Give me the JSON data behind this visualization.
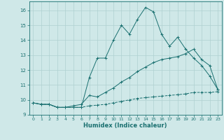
{
  "xlabel": "Humidex (Indice chaleur)",
  "bg_color": "#cfe8e8",
  "grid_color": "#afd0d0",
  "line_color": "#1a7070",
  "xlim": [
    -0.5,
    23.5
  ],
  "ylim": [
    9.0,
    16.6
  ],
  "xticks": [
    0,
    1,
    2,
    3,
    4,
    5,
    6,
    7,
    8,
    9,
    10,
    11,
    12,
    13,
    14,
    15,
    16,
    17,
    18,
    19,
    20,
    21,
    22,
    23
  ],
  "yticks": [
    9,
    10,
    11,
    12,
    13,
    14,
    15,
    16
  ],
  "line1_x": [
    0,
    1,
    2,
    3,
    4,
    5,
    6,
    7,
    8,
    9,
    10,
    11,
    12,
    13,
    14,
    15,
    16,
    17,
    18,
    19,
    20,
    21,
    22,
    23
  ],
  "line1_y": [
    9.8,
    9.7,
    9.7,
    9.5,
    9.5,
    9.5,
    9.5,
    11.5,
    12.8,
    12.8,
    14.0,
    15.0,
    14.4,
    15.4,
    16.2,
    15.9,
    14.4,
    13.6,
    14.2,
    13.4,
    12.8,
    12.3,
    11.6,
    10.7
  ],
  "line2_x": [
    0,
    1,
    2,
    3,
    4,
    5,
    6,
    7,
    8,
    9,
    10,
    11,
    12,
    13,
    14,
    15,
    16,
    17,
    18,
    19,
    20,
    21,
    22,
    23
  ],
  "line2_y": [
    9.8,
    9.7,
    9.7,
    9.5,
    9.5,
    9.6,
    9.7,
    10.3,
    10.2,
    10.5,
    10.8,
    11.2,
    11.5,
    11.9,
    12.2,
    12.5,
    12.7,
    12.8,
    12.9,
    13.1,
    13.4,
    12.7,
    12.3,
    10.7
  ],
  "line3_x": [
    0,
    1,
    2,
    3,
    4,
    5,
    6,
    7,
    8,
    9,
    10,
    11,
    12,
    13,
    14,
    15,
    16,
    17,
    18,
    19,
    20,
    21,
    22,
    23
  ],
  "line3_y": [
    9.8,
    9.7,
    9.7,
    9.5,
    9.5,
    9.5,
    9.5,
    9.6,
    9.65,
    9.7,
    9.8,
    9.9,
    10.0,
    10.1,
    10.15,
    10.2,
    10.25,
    10.3,
    10.35,
    10.4,
    10.5,
    10.5,
    10.5,
    10.55
  ]
}
